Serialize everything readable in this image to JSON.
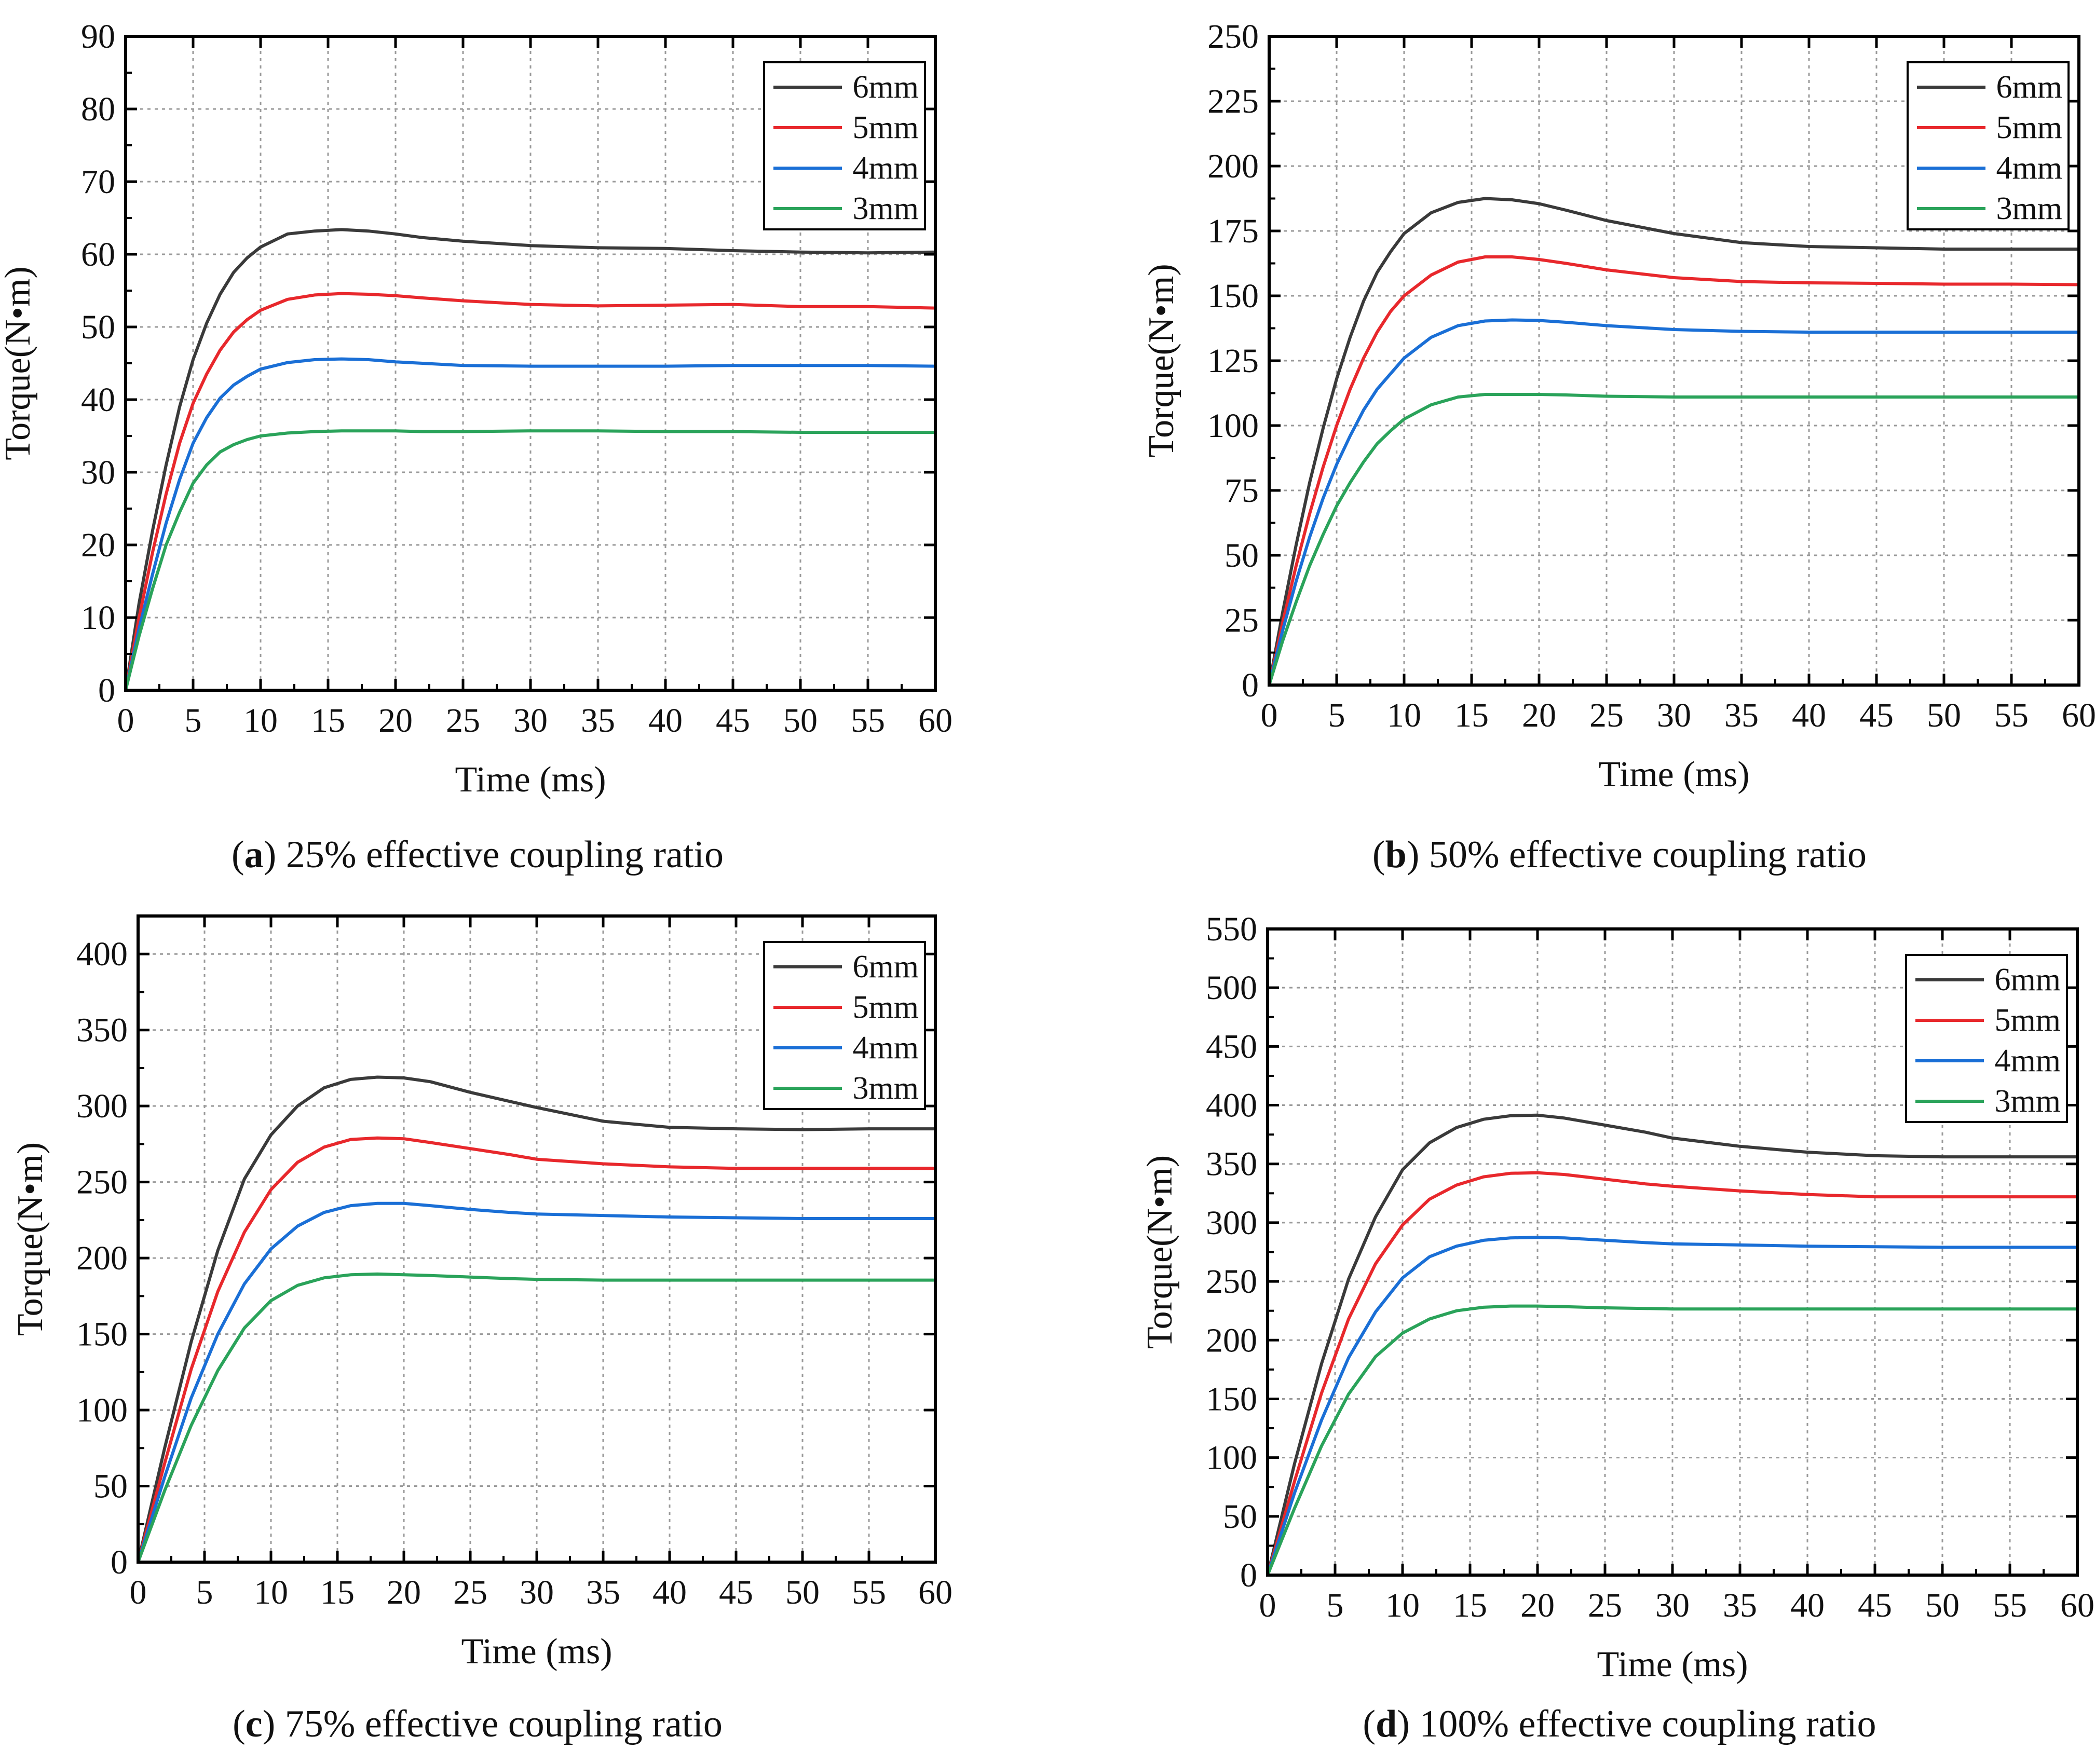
{
  "figure": {
    "panels": [
      {
        "letter": "a",
        "caption": "25% effective coupling ratio"
      },
      {
        "letter": "b",
        "caption": "50% effective coupling ratio"
      },
      {
        "letter": "c",
        "caption": "75% effective coupling ratio"
      },
      {
        "letter": "d",
        "caption": "100% effective coupling ratio"
      }
    ]
  },
  "colors": {
    "6mm": "#3a3a3a",
    "5mm": "#e8282c",
    "4mm": "#1a6fd6",
    "3mm": "#2aa35a"
  },
  "chart_data": [
    {
      "type": "line",
      "title": "25% effective coupling ratio",
      "xlabel": "Time (ms)",
      "ylabel": "Torque(N•m)",
      "xlim": [
        0,
        60
      ],
      "ylim": [
        0,
        90
      ],
      "xticks": [
        0,
        5,
        10,
        15,
        20,
        25,
        30,
        35,
        40,
        45,
        50,
        55,
        60
      ],
      "yticks": [
        0,
        10,
        20,
        30,
        40,
        50,
        60,
        70,
        80,
        90
      ],
      "grid": true,
      "legend": "top-right",
      "x": [
        0,
        1,
        2,
        3,
        4,
        5,
        6,
        7,
        8,
        9,
        10,
        12,
        14,
        16,
        18,
        20,
        22,
        25,
        30,
        35,
        40,
        45,
        50,
        55,
        60
      ],
      "series": [
        {
          "name": "6mm",
          "values": [
            0,
            12,
            22,
            31,
            39,
            45.5,
            50.5,
            54.5,
            57.5,
            59.5,
            61,
            62.8,
            63.2,
            63.4,
            63.2,
            62.8,
            62.3,
            61.8,
            61.2,
            60.9,
            60.8,
            60.5,
            60.3,
            60.2,
            60.3
          ]
        },
        {
          "name": "5mm",
          "values": [
            0,
            10,
            19,
            27,
            34,
            39.5,
            43.5,
            46.8,
            49.3,
            51,
            52.3,
            53.8,
            54.4,
            54.6,
            54.5,
            54.3,
            54,
            53.6,
            53.1,
            52.9,
            53,
            53.1,
            52.8,
            52.8,
            52.6
          ]
        },
        {
          "name": "4mm",
          "values": [
            0,
            8.5,
            16,
            23,
            29,
            34,
            37.5,
            40.2,
            42,
            43.2,
            44.2,
            45.1,
            45.5,
            45.6,
            45.5,
            45.2,
            45,
            44.7,
            44.6,
            44.6,
            44.6,
            44.7,
            44.7,
            44.7,
            44.6
          ]
        },
        {
          "name": "3mm",
          "values": [
            0,
            7.5,
            14,
            20,
            24.5,
            28.5,
            31,
            32.8,
            33.8,
            34.5,
            35,
            35.4,
            35.6,
            35.7,
            35.7,
            35.7,
            35.6,
            35.6,
            35.7,
            35.7,
            35.6,
            35.6,
            35.5,
            35.5,
            35.5
          ]
        }
      ]
    },
    {
      "type": "line",
      "title": "50% effective coupling ratio",
      "xlabel": "Time (ms)",
      "ylabel": "Torque(N•m)",
      "xlim": [
        0,
        60
      ],
      "ylim": [
        0,
        250
      ],
      "xticks": [
        0,
        5,
        10,
        15,
        20,
        25,
        30,
        35,
        40,
        45,
        50,
        55,
        60
      ],
      "yticks": [
        0,
        25,
        50,
        75,
        100,
        125,
        150,
        175,
        200,
        225,
        250
      ],
      "grid": true,
      "legend": "top-right",
      "x": [
        0,
        1,
        2,
        3,
        4,
        5,
        6,
        7,
        8,
        9,
        10,
        12,
        14,
        16,
        18,
        20,
        22,
        25,
        30,
        35,
        40,
        45,
        50,
        55,
        60
      ],
      "series": [
        {
          "name": "6mm",
          "values": [
            0,
            28,
            54,
            78,
            99,
            118,
            134,
            148,
            159,
            167,
            174,
            182,
            186,
            187.5,
            187,
            185.5,
            183,
            179,
            174,
            170.5,
            169,
            168.5,
            168,
            168,
            168
          ]
        },
        {
          "name": "5mm",
          "values": [
            0,
            24,
            46,
            66,
            84,
            100,
            114,
            126,
            136,
            144,
            150,
            158,
            163,
            165,
            165,
            164,
            162.5,
            160,
            157,
            155.5,
            155,
            154.8,
            154.5,
            154.5,
            154.3
          ]
        },
        {
          "name": "4mm",
          "values": [
            0,
            21,
            40,
            57,
            72,
            85,
            96,
            106,
            114,
            120,
            126,
            134,
            138.5,
            140.3,
            140.7,
            140.5,
            139.8,
            138.5,
            137,
            136.3,
            136,
            136,
            136,
            136,
            136
          ]
        },
        {
          "name": "3mm",
          "values": [
            0,
            17,
            32,
            46,
            58,
            69,
            78,
            86,
            93,
            98,
            102.5,
            108,
            111,
            112,
            112,
            112,
            111.8,
            111.3,
            111,
            111,
            111,
            111,
            111,
            111,
            111
          ]
        }
      ]
    },
    {
      "type": "line",
      "title": "75% effective coupling ratio",
      "xlabel": "Time (ms)",
      "ylabel": "Torque(N•m)",
      "xlim": [
        0,
        60
      ],
      "ylim": [
        0,
        425
      ],
      "xticks": [
        0,
        5,
        10,
        15,
        20,
        25,
        30,
        35,
        40,
        45,
        50,
        55,
        60
      ],
      "yticks": [
        0,
        50,
        100,
        150,
        200,
        250,
        300,
        350,
        400
      ],
      "grid": true,
      "legend": "top-right",
      "x": [
        0,
        2,
        4,
        6,
        8,
        10,
        12,
        14,
        16,
        18,
        20,
        22,
        25,
        28,
        30,
        35,
        40,
        45,
        50,
        55,
        60
      ],
      "series": [
        {
          "name": "6mm",
          "values": [
            0,
            75,
            145,
            205,
            252,
            281,
            300,
            312,
            317.5,
            319,
            318.5,
            316,
            309,
            303,
            299,
            290,
            286,
            285,
            284.5,
            285,
            285
          ]
        },
        {
          "name": "5mm",
          "values": [
            0,
            65,
            127,
            178,
            217,
            245,
            263,
            273,
            278,
            279,
            278.5,
            276,
            272,
            268,
            265,
            262,
            260,
            259,
            259,
            259,
            259
          ]
        },
        {
          "name": "4mm",
          "values": [
            0,
            56,
            108,
            150,
            183,
            206,
            221,
            230,
            234.5,
            236,
            236,
            234.5,
            232,
            230,
            229,
            228,
            227,
            226.5,
            226,
            226,
            226
          ]
        },
        {
          "name": "3mm",
          "values": [
            0,
            47,
            90,
            126,
            154,
            172,
            182,
            187,
            189,
            189.5,
            189,
            188.5,
            187.5,
            186.5,
            186,
            185.5,
            185.5,
            185.5,
            185.5,
            185.5,
            185.5
          ]
        }
      ]
    },
    {
      "type": "line",
      "title": "100% effective coupling ratio",
      "xlabel": "Time (ms)",
      "ylabel": "Torque(N•m)",
      "xlim": [
        0,
        60
      ],
      "ylim": [
        0,
        550
      ],
      "xticks": [
        0,
        5,
        10,
        15,
        20,
        25,
        30,
        35,
        40,
        45,
        50,
        55,
        60
      ],
      "yticks": [
        0,
        50,
        100,
        150,
        200,
        250,
        300,
        350,
        400,
        450,
        500,
        550
      ],
      "grid": true,
      "legend": "top-right",
      "x": [
        0,
        2,
        4,
        6,
        8,
        10,
        12,
        14,
        16,
        18,
        20,
        22,
        25,
        28,
        30,
        35,
        40,
        45,
        50,
        55,
        60
      ],
      "series": [
        {
          "name": "6mm",
          "values": [
            0,
            95,
            180,
            252,
            305,
            345,
            368,
            381,
            388,
            391,
            391.5,
            389,
            383,
            377,
            372,
            365,
            360,
            357,
            356,
            356,
            356
          ]
        },
        {
          "name": "5mm",
          "values": [
            0,
            80,
            155,
            218,
            265,
            298,
            320,
            332,
            339,
            342,
            342.5,
            341,
            337,
            333,
            331,
            327,
            324,
            322,
            322,
            322,
            322
          ]
        },
        {
          "name": "4mm",
          "values": [
            0,
            70,
            132,
            185,
            224,
            253,
            271,
            280,
            285,
            287,
            287.5,
            287,
            285,
            283,
            282,
            281,
            280,
            279.5,
            279,
            279,
            279
          ]
        },
        {
          "name": "3mm",
          "values": [
            0,
            57,
            110,
            154,
            186,
            206,
            218,
            225,
            228,
            229,
            229,
            228.5,
            227.5,
            227,
            226.5,
            226.5,
            226.5,
            226.5,
            226.5,
            226.5,
            226.5
          ]
        }
      ]
    }
  ]
}
